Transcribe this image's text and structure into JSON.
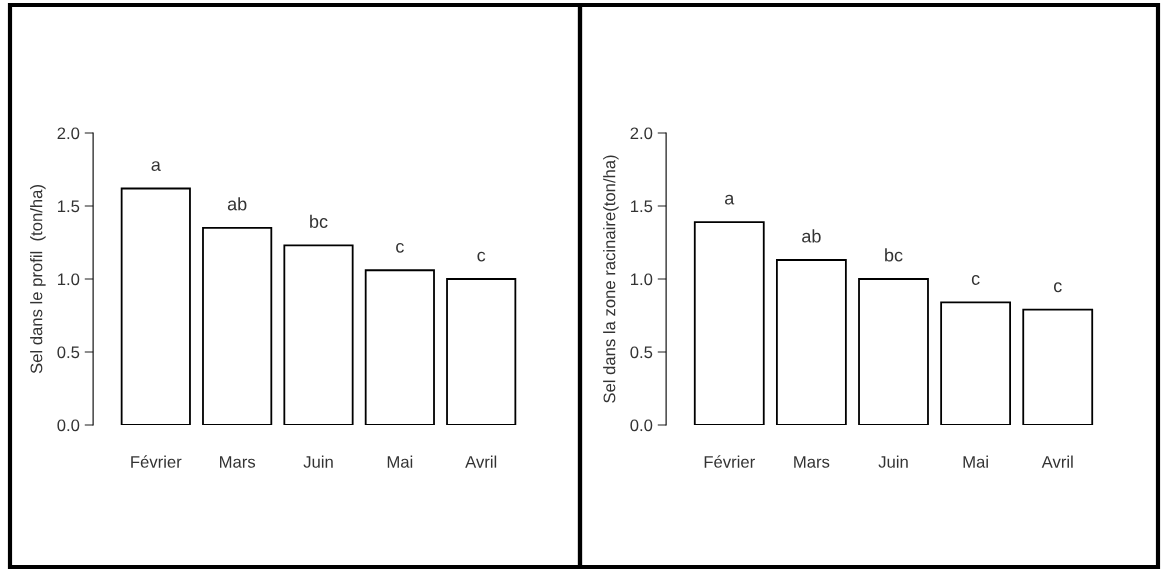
{
  "chart_data": [
    {
      "type": "bar",
      "ylabel": "Sel dans le profil  (ton/ha)",
      "categories": [
        "Février",
        "Mars",
        "Juin",
        "Mai",
        "Avril"
      ],
      "values": [
        1.62,
        1.35,
        1.23,
        1.06,
        1.0
      ],
      "color": "#ffffff",
      "ylim": [
        0,
        2.0
      ],
      "yticks": [
        {
          "value": 0,
          "label": "0.0"
        },
        {
          "value": 0.5,
          "label": "0.5"
        },
        {
          "value": 1.0,
          "label": "1.0"
        },
        {
          "value": 1.5,
          "label": "1.5"
        },
        {
          "value": 2.0,
          "label": "2.0"
        }
      ],
      "grid": false,
      "annotations": [
        {
          "text": "a",
          "x": "Février",
          "y": 1.62
        },
        {
          "text": "ab",
          "x": "Mars",
          "y": 1.35
        },
        {
          "text": "bc",
          "x": "Juin",
          "y": 1.23
        },
        {
          "text": "c",
          "x": "Mai",
          "y": 1.06
        },
        {
          "text": "c",
          "x": "Avril",
          "y": 1.0
        }
      ]
    },
    {
      "type": "bar",
      "ylabel": "Sel dans la zone racinaire(ton/ha)",
      "categories": [
        "Février",
        "Mars",
        "Juin",
        "Mai",
        "Avril"
      ],
      "values": [
        1.39,
        1.13,
        1.0,
        0.84,
        0.79
      ],
      "color": "#ffffff",
      "ylim": [
        0,
        2.0
      ],
      "yticks": [
        {
          "value": 0,
          "label": "0.0"
        },
        {
          "value": 0.5,
          "label": "0.5"
        },
        {
          "value": 1.0,
          "label": "1.0"
        },
        {
          "value": 1.5,
          "label": "1.5"
        },
        {
          "value": 2.0,
          "label": "2.0"
        }
      ],
      "grid": false,
      "annotations": [
        {
          "text": "a",
          "x": "Février",
          "y": 1.39
        },
        {
          "text": "ab",
          "x": "Mars",
          "y": 1.13
        },
        {
          "text": "bc",
          "x": "Juin",
          "y": 1.0
        },
        {
          "text": "c",
          "x": "Mai",
          "y": 0.84
        },
        {
          "text": "c",
          "x": "Avril",
          "y": 0.79
        }
      ]
    }
  ]
}
